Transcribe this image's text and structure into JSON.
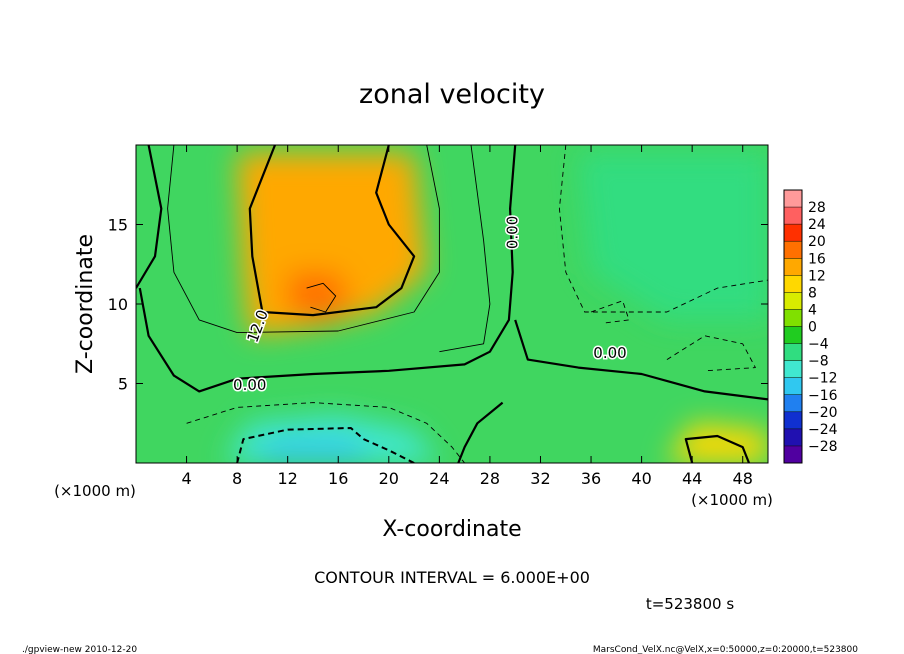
{
  "chart_data": {
    "type": "heatmap",
    "title": "zonal velocity",
    "xlabel": "X-coordinate",
    "ylabel": "Z-coordinate",
    "x_unit": "(×1000 m)",
    "x_unit_right": "(×1000 m)",
    "y_unit": "(×1000 m)",
    "xlim": [
      0,
      50
    ],
    "ylim": [
      0,
      20
    ],
    "x_ticks": [
      4,
      8,
      12,
      16,
      20,
      24,
      28,
      32,
      36,
      40,
      44,
      48
    ],
    "y_ticks": [
      5,
      10,
      15
    ],
    "contour_interval_text": "CONTOUR INTERVAL = 6.000E+00",
    "time_text": "t=523800 s",
    "contour_labels": [
      "12.0",
      "0.00",
      "0.00",
      "0.00"
    ],
    "colorbar": {
      "levels": [
        28,
        24,
        20,
        16,
        12,
        8,
        4,
        0,
        -4,
        -8,
        -12,
        -16,
        -20,
        -24,
        -28
      ],
      "colors": [
        "#ff9a9a",
        "#ff6060",
        "#ff3000",
        "#ff7000",
        "#ffa800",
        "#ffd800",
        "#d8ec00",
        "#80e000",
        "#20cc20",
        "#30dd80",
        "#40e8d0",
        "#30c8f0",
        "#2080f0",
        "#1030d0",
        "#2010b0",
        "#5000a0"
      ]
    },
    "regions": [
      {
        "name": "westerly-jet-core",
        "xy": [
          [
            8,
            19.5
          ],
          [
            22,
            19.5
          ],
          [
            23,
            12
          ],
          [
            19,
            9.5
          ],
          [
            14,
            8.5
          ],
          [
            9,
            8
          ],
          [
            8.5,
            12
          ]
        ],
        "value": 12
      },
      {
        "name": "jet-max",
        "xy": [
          [
            12,
            12
          ],
          [
            16,
            12
          ],
          [
            17,
            10
          ],
          [
            15,
            9
          ],
          [
            12,
            9.5
          ]
        ],
        "value": 16
      },
      {
        "name": "low-level-easterly",
        "xy": [
          [
            7,
            0
          ],
          [
            24,
            0
          ],
          [
            22,
            2
          ],
          [
            16,
            3
          ],
          [
            9,
            2.5
          ]
        ],
        "value": -12
      },
      {
        "name": "low-level-easterly-core",
        "xy": [
          [
            9,
            0
          ],
          [
            19,
            0
          ],
          [
            17,
            1.5
          ],
          [
            11,
            1.5
          ]
        ],
        "value": -16
      },
      {
        "name": "upper-east-easterly",
        "xy": [
          [
            35,
            19.5
          ],
          [
            50,
            19.5
          ],
          [
            50,
            9
          ],
          [
            42,
            9
          ],
          [
            36,
            12
          ]
        ],
        "value": -6
      },
      {
        "name": "east-surface-westerly",
        "xy": [
          [
            42,
            0
          ],
          [
            50,
            0
          ],
          [
            50,
            2
          ],
          [
            44,
            2.5
          ]
        ],
        "value": 10
      }
    ],
    "contour_lines": [
      {
        "value": 0,
        "style": "solid-thick",
        "xy": [
          [
            30,
            20
          ],
          [
            29.6,
            16
          ],
          [
            29.8,
            12
          ],
          [
            29.5,
            9
          ],
          [
            28,
            7
          ],
          [
            26,
            6.2
          ],
          [
            20,
            5.8
          ],
          [
            14,
            5.6
          ],
          [
            8,
            5.3
          ],
          [
            5,
            4.5
          ],
          [
            3,
            5.5
          ],
          [
            1,
            8
          ],
          [
            0.3,
            11
          ]
        ]
      },
      {
        "value": 0,
        "style": "solid-thick",
        "xy": [
          [
            30,
            9
          ],
          [
            31,
            6.5
          ],
          [
            35,
            6
          ],
          [
            40,
            5.6
          ],
          [
            45,
            4.5
          ],
          [
            50,
            4
          ]
        ]
      },
      {
        "value": 0,
        "style": "solid-thick",
        "xy": [
          [
            1,
            20
          ],
          [
            2,
            16
          ],
          [
            1.5,
            13
          ],
          [
            0,
            11
          ]
        ]
      },
      {
        "value": 12,
        "style": "solid-thick",
        "xy": [
          [
            11,
            20
          ],
          [
            9,
            16
          ],
          [
            9.2,
            13
          ],
          [
            10,
            9.5
          ],
          [
            14,
            9.3
          ],
          [
            19,
            9.8
          ],
          [
            21,
            11
          ],
          [
            22,
            13
          ],
          [
            20,
            15
          ],
          [
            19,
            17
          ],
          [
            20,
            20
          ]
        ]
      },
      {
        "value": 0,
        "style": "solid-thick",
        "xy": [
          [
            29,
            3.8
          ],
          [
            27,
            2.5
          ],
          [
            26,
            1
          ],
          [
            25.5,
            0
          ]
        ]
      },
      {
        "value": 0,
        "style": "solid-thick",
        "xy": [
          [
            44,
            0
          ],
          [
            43.5,
            1.5
          ],
          [
            46,
            1.7
          ],
          [
            48,
            1
          ],
          [
            48.5,
            0
          ]
        ]
      },
      {
        "value": 6,
        "style": "solid-thin",
        "xy": [
          [
            23,
            20
          ],
          [
            24,
            16
          ],
          [
            24,
            12
          ],
          [
            22,
            9.5
          ],
          [
            16,
            8.3
          ],
          [
            8,
            8.2
          ],
          [
            5,
            9
          ],
          [
            3,
            12
          ],
          [
            2.5,
            16
          ],
          [
            3,
            20
          ]
        ]
      },
      {
        "value": 6,
        "style": "solid-thin",
        "xy": [
          [
            24,
            7
          ],
          [
            27.5,
            7.5
          ],
          [
            28,
            10
          ],
          [
            27.5,
            14
          ],
          [
            26.5,
            20
          ]
        ]
      },
      {
        "value": 18,
        "style": "solid-thin",
        "xy": [
          [
            13.5,
            11
          ],
          [
            14.8,
            11.3
          ],
          [
            15.8,
            10.5
          ],
          [
            15,
            9.5
          ],
          [
            13.8,
            9.8
          ]
        ]
      },
      {
        "value": -6,
        "style": "dashed",
        "xy": [
          [
            4,
            2.5
          ],
          [
            8,
            3.5
          ],
          [
            14,
            3.8
          ],
          [
            20,
            3.5
          ],
          [
            23,
            2.5
          ],
          [
            25,
            1
          ],
          [
            26,
            0
          ]
        ]
      },
      {
        "value": -12,
        "style": "dashed-thick",
        "xy": [
          [
            8,
            0
          ],
          [
            8.5,
            1.5
          ],
          [
            12,
            2.1
          ],
          [
            17,
            2.2
          ],
          [
            18,
            1.5
          ],
          [
            20,
            0.8
          ],
          [
            22,
            0
          ]
        ]
      },
      {
        "value": -6,
        "style": "dashed",
        "xy": [
          [
            34,
            20
          ],
          [
            33.5,
            16
          ],
          [
            34,
            12
          ],
          [
            35.5,
            9.5
          ],
          [
            42,
            9.5
          ],
          [
            46,
            11
          ],
          [
            50,
            11.5
          ]
        ]
      },
      {
        "value": -6,
        "style": "dashed",
        "xy": [
          [
            42,
            6.5
          ],
          [
            45,
            8
          ],
          [
            48,
            7.5
          ],
          [
            49,
            6
          ],
          [
            45,
            5.8
          ]
        ]
      },
      {
        "value": -6,
        "style": "dashed",
        "xy": [
          [
            36,
            9.5
          ],
          [
            38.5,
            10.2
          ],
          [
            39,
            9
          ],
          [
            37,
            8.8
          ]
        ]
      }
    ]
  },
  "footer": {
    "left_text": "./gpview-new  2010-12-20",
    "right_text": "MarsCond_VelX.nc@VelX,x=0:50000,z=0:20000,t=523800"
  }
}
